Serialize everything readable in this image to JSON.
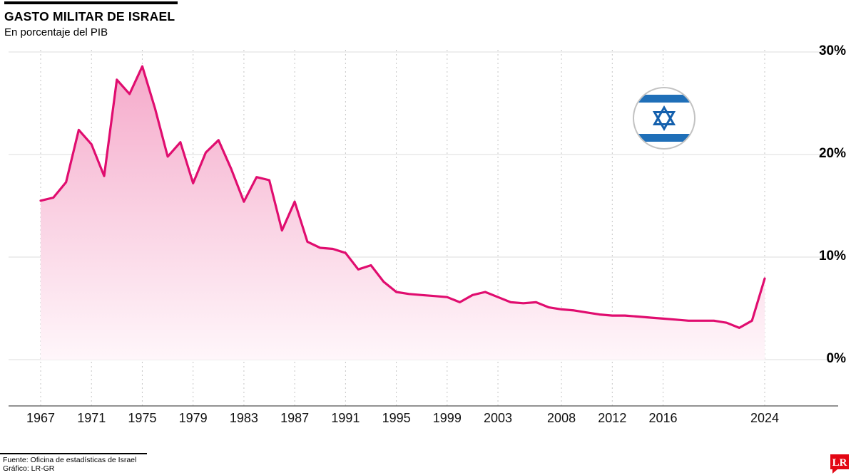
{
  "header": {
    "title": "GASTO MILITAR DE ISRAEL",
    "subtitle": "En porcentaje del PIB"
  },
  "chart_data": {
    "type": "area",
    "title": "GASTO MILITAR DE ISRAEL",
    "subtitle": "En porcentaje del PIB",
    "unit": "% del PIB",
    "ylim": [
      0,
      30
    ],
    "xlim": [
      1967,
      2024
    ],
    "grid": {
      "horizontal": "solid",
      "vertical": "dashed"
    },
    "legend": "none",
    "x": [
      1967,
      1968,
      1969,
      1970,
      1971,
      1972,
      1973,
      1974,
      1975,
      1976,
      1977,
      1978,
      1979,
      1980,
      1981,
      1982,
      1983,
      1984,
      1985,
      1986,
      1987,
      1988,
      1989,
      1990,
      1991,
      1992,
      1993,
      1994,
      1995,
      1996,
      1997,
      1998,
      1999,
      2000,
      2001,
      2002,
      2003,
      2004,
      2005,
      2006,
      2007,
      2008,
      2009,
      2010,
      2011,
      2012,
      2013,
      2014,
      2015,
      2016,
      2017,
      2018,
      2019,
      2020,
      2021,
      2022,
      2023,
      2024
    ],
    "values": [
      15.5,
      15.8,
      17.3,
      22.4,
      21.0,
      17.9,
      27.3,
      25.9,
      28.6,
      24.5,
      19.8,
      21.2,
      17.2,
      20.2,
      21.4,
      18.6,
      15.4,
      17.8,
      17.5,
      12.6,
      15.4,
      11.5,
      10.9,
      10.8,
      10.4,
      8.8,
      9.2,
      7.6,
      6.6,
      6.4,
      6.3,
      6.2,
      6.1,
      5.6,
      6.3,
      6.6,
      6.1,
      5.6,
      5.5,
      5.6,
      5.1,
      4.9,
      4.8,
      4.6,
      4.4,
      4.3,
      4.3,
      4.2,
      4.1,
      4.0,
      3.9,
      3.8,
      3.8,
      3.8,
      3.6,
      3.1,
      3.8,
      7.9
    ],
    "x_ticks": [
      1967,
      1971,
      1975,
      1979,
      1983,
      1987,
      1991,
      1995,
      1999,
      2003,
      2008,
      2012,
      2016,
      2024
    ],
    "y_ticks": [
      0,
      10,
      20,
      30
    ],
    "y_tick_labels": [
      "0%",
      "10%",
      "20%",
      "30%"
    ],
    "line_color": "#e00d6f",
    "fill_top_color": "#f5a6c8",
    "fill_mid_color": "#fad3e4",
    "fill_bottom_color": "#fff6fa"
  },
  "flag": {
    "name": "israel-flag",
    "stripe_color": "#1f6fb8",
    "star_color": "#1460ad",
    "border_color": "#c2c2c2"
  },
  "footer": {
    "source": "Fuente: Oficina de estadísticas de Israel",
    "credit": "Gráfico: LR-GR",
    "logo_text": "LR",
    "logo_color": "#e30613"
  }
}
